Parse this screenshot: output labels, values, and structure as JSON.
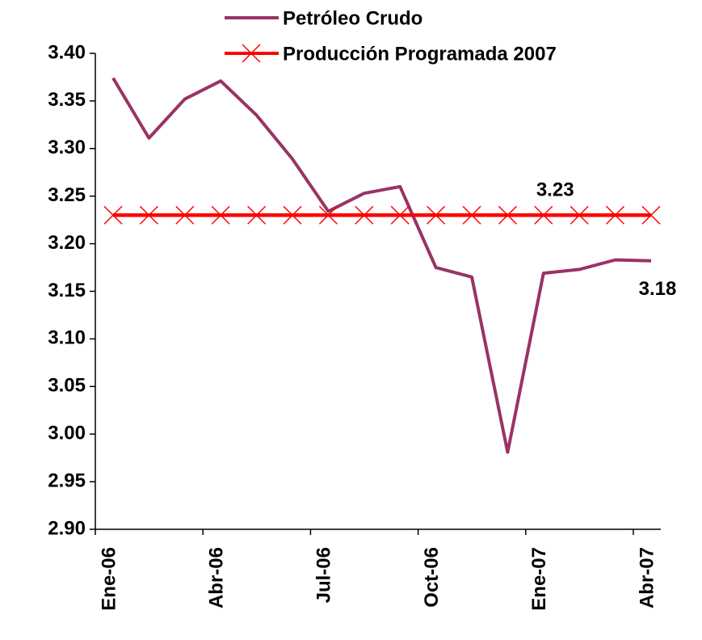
{
  "chart_data": {
    "type": "line",
    "categories": [
      "Ene-06",
      null,
      null,
      "Abr-06",
      null,
      null,
      "Jul-06",
      null,
      null,
      "Oct-06",
      null,
      null,
      "Ene-07",
      null,
      null,
      "Abr-07"
    ],
    "series": [
      {
        "name": "Petróleo Crudo",
        "color": "#993366",
        "values": [
          3.374,
          3.311,
          3.352,
          3.371,
          3.335,
          3.289,
          3.234,
          3.253,
          3.26,
          3.175,
          3.165,
          2.981,
          3.169,
          3.173,
          3.183,
          3.182
        ],
        "value_labels": [
          null,
          null,
          null,
          null,
          null,
          null,
          null,
          null,
          null,
          null,
          null,
          null,
          null,
          null,
          null,
          "3.18"
        ]
      },
      {
        "name": "Producción Programada 2007",
        "color": "#ff0000",
        "marker": "x",
        "values": [
          3.23,
          3.23,
          3.23,
          3.23,
          3.23,
          3.23,
          3.23,
          3.23,
          3.23,
          3.23,
          3.23,
          3.23,
          3.23,
          3.23,
          3.23,
          3.23
        ],
        "value_labels": [
          null,
          null,
          null,
          null,
          null,
          null,
          null,
          null,
          null,
          null,
          null,
          null,
          null,
          "3.23",
          null,
          null
        ]
      }
    ],
    "ylim": [
      2.9,
      3.4
    ],
    "yticks": [
      {
        "value": 2.9,
        "label": "2.90"
      },
      {
        "value": 2.95,
        "label": "2.95"
      },
      {
        "value": 3.0,
        "label": "3.00"
      },
      {
        "value": 3.05,
        "label": "3.05"
      },
      {
        "value": 3.1,
        "label": "3.10"
      },
      {
        "value": 3.15,
        "label": "3.15"
      },
      {
        "value": 3.2,
        "label": "3.20"
      },
      {
        "value": 3.25,
        "label": "3.25"
      },
      {
        "value": 3.3,
        "label": "3.30"
      },
      {
        "value": 3.35,
        "label": "3.35"
      },
      {
        "value": 3.4,
        "label": "3.40"
      }
    ],
    "grid": false,
    "legend": "top"
  }
}
